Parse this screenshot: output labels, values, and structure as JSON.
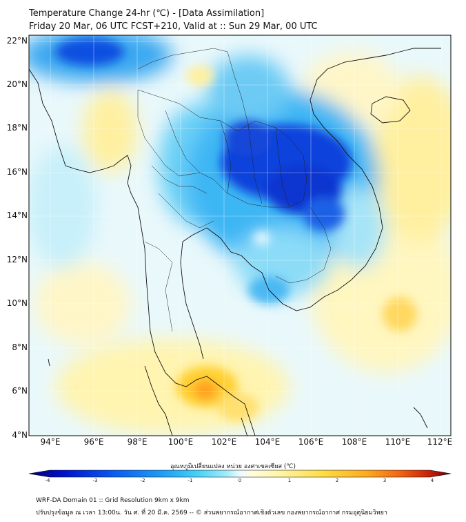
{
  "header": {
    "title_line1": "Temperature Change 24-hr (℃) - [Data Assimilation]",
    "title_line2": "Friday 20 Mar, 06 UTC FCST+210, Valid at :: Sun 29 Mar, 00 UTC"
  },
  "map": {
    "lat_labels": [
      "22°N",
      "20°N",
      "18°N",
      "16°N",
      "14°N",
      "12°N",
      "10°N",
      "8°N",
      "6°N",
      "4°N"
    ],
    "lon_labels": [
      "94°E",
      "96°E",
      "98°E",
      "100°E",
      "102°E",
      "104°E",
      "106°E",
      "108°E",
      "110°E",
      "112°E"
    ],
    "lat_range": [
      4,
      22.3
    ],
    "lon_range": [
      93,
      112.3
    ]
  },
  "colorbar": {
    "title": "อุณหภูมิเปลี่ยนแปลง หน่วย องศาเซลเซียส (℃)",
    "ticks": [
      "-4",
      "-3",
      "-2",
      "-1",
      "0",
      "1",
      "2",
      "3",
      "4"
    ],
    "range": [
      -4,
      4
    ],
    "colors": [
      "#000070",
      "#0010c8",
      "#0a5af0",
      "#1ea0f5",
      "#46d2f8",
      "#a6ecfa",
      "#eefaff",
      "#fffce0",
      "#fff4a0",
      "#ffdc40",
      "#ffaa20",
      "#f06414",
      "#c81e0a",
      "#640000"
    ]
  },
  "footer": {
    "line1": "WRF-DA Domain 01 :: Grid Resolution 9km x 9km",
    "line2": "ปรับปรุงข้อมูล ณ เวลา 13:00น. วัน ศ. ที่ 20 มี.ค. 2569 -- © ส่วนพยากรณ์อากาศเชิงตัวเลข กองพยากรณ์อากาศ กรมอุตุนิยมวิทยา"
  }
}
